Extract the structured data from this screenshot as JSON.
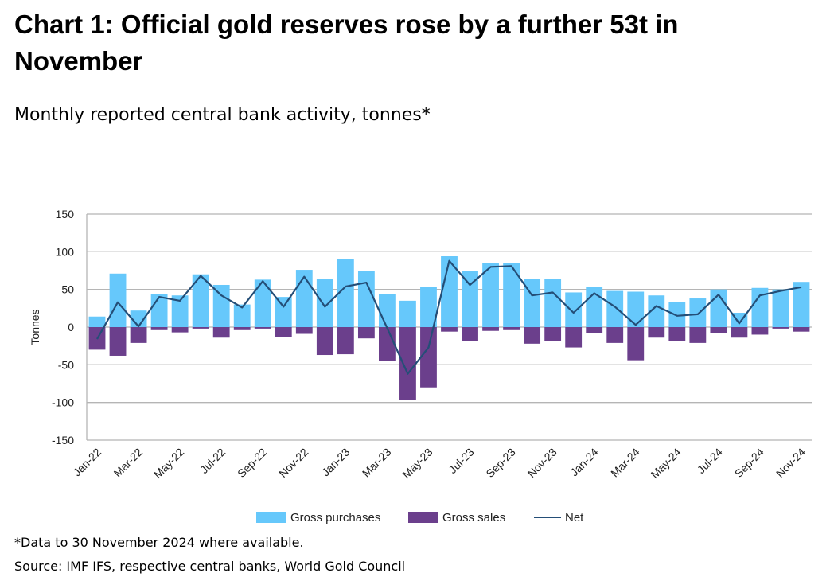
{
  "title": "Chart 1: Official gold reserves rose by a further 53t in November",
  "subtitle": "Monthly reported central bank activity, tonnes*",
  "footnote": "*Data to 30 November 2024 where available.",
  "source": "Source: IMF IFS, respective central banks, World Gold Council",
  "colors": {
    "purchases": "#66c8fb",
    "sales": "#6b3f8c",
    "net": "#244e77",
    "grid": "#b5b5b5"
  },
  "chart_data": {
    "type": "bar",
    "ylabel": "Tonnes",
    "ylim": [
      -150,
      150
    ],
    "yticks": [
      150,
      100,
      50,
      0,
      -50,
      -100,
      -150
    ],
    "ytick_labels": [
      "150",
      "100",
      "50",
      "0",
      "-50",
      "-100",
      "-150"
    ],
    "legend_position": "bottom",
    "grid": true,
    "categories": [
      "Jan-22",
      "Feb-22",
      "Mar-22",
      "Apr-22",
      "May-22",
      "Jun-22",
      "Jul-22",
      "Aug-22",
      "Sep-22",
      "Oct-22",
      "Nov-22",
      "Dec-22",
      "Jan-23",
      "Feb-23",
      "Mar-23",
      "Apr-23",
      "May-23",
      "Jun-23",
      "Jul-23",
      "Aug-23",
      "Sep-23",
      "Oct-23",
      "Nov-23",
      "Dec-23",
      "Jan-24",
      "Feb-24",
      "Mar-24",
      "Apr-24",
      "May-24",
      "Jun-24",
      "Jul-24",
      "Aug-24",
      "Sep-24",
      "Oct-24",
      "Nov-24"
    ],
    "xtick_labels": [
      "Jan-22",
      "Mar-22",
      "May-22",
      "Jul-22",
      "Sep-22",
      "Nov-22",
      "Jan-23",
      "Mar-23",
      "May-23",
      "Jul-23",
      "Sep-23",
      "Nov-23",
      "Jan-24",
      "Mar-24",
      "May-24",
      "Jul-24",
      "Sep-24",
      "Nov-24"
    ],
    "series": [
      {
        "name": "Gross purchases",
        "type": "bar",
        "values": [
          14,
          71,
          22,
          44,
          42,
          70,
          56,
          30,
          63,
          40,
          76,
          64,
          90,
          74,
          44,
          35,
          53,
          94,
          74,
          85,
          85,
          64,
          64,
          46,
          53,
          48,
          47,
          42,
          33,
          38,
          50,
          19,
          52,
          50,
          60
        ]
      },
      {
        "name": "Gross sales",
        "type": "bar",
        "values": [
          -30,
          -38,
          -21,
          -4,
          -7,
          -2,
          -14,
          -4,
          -2,
          -13,
          -9,
          -37,
          -36,
          -15,
          -45,
          -97,
          -80,
          -6,
          -18,
          -5,
          -4,
          -22,
          -18,
          -27,
          -8,
          -21,
          -44,
          -14,
          -18,
          -21,
          -8,
          -14,
          -10,
          -2,
          -6
        ]
      },
      {
        "name": "Net",
        "type": "line",
        "values": [
          -16,
          33,
          1,
          40,
          35,
          68,
          42,
          26,
          61,
          27,
          67,
          27,
          54,
          59,
          -1,
          -62,
          -27,
          88,
          56,
          80,
          81,
          42,
          46,
          19,
          45,
          27,
          3,
          28,
          15,
          17,
          43,
          5,
          42,
          48,
          53
        ]
      }
    ]
  }
}
